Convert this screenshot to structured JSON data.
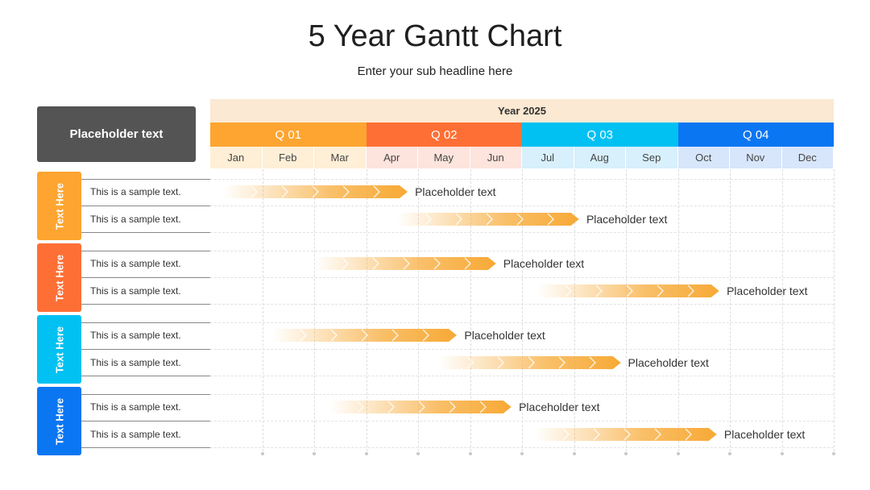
{
  "title": "5 Year Gantt Chart",
  "subtitle": "Enter your sub headline here",
  "placeholder_box": "Placeholder text",
  "year_label": "Year 2025",
  "colors": {
    "q1": "#fda530",
    "q2": "#fe6f35",
    "q3": "#00c1f2",
    "q4": "#0b76f2",
    "m1": "#feefd6",
    "m2": "#fde4dd",
    "m3": "#d7f0fb",
    "m4": "#d8e6fb",
    "bar": "#f7a935",
    "bar_chevron": "#ffffff",
    "group1": "#fda530",
    "group2": "#fe6f35",
    "group3": "#00c1f2",
    "group4": "#0b76f2"
  },
  "chart_data": {
    "type": "gantt",
    "title": "5 Year Gantt Chart",
    "quarters": [
      "Q 01",
      "Q 02",
      "Q 03",
      "Q 04"
    ],
    "months": [
      "Jan",
      "Feb",
      "Mar",
      "Apr",
      "May",
      "Jun",
      "Jul",
      "Aug",
      "Sep",
      "Oct",
      "Nov",
      "Dec"
    ],
    "groups": [
      {
        "label": "Text Here",
        "rows": [
          {
            "text": "This is a sample text.",
            "start": 0.25,
            "end": 3.8,
            "label": "Placeholder text"
          },
          {
            "text": "This is a sample text.",
            "start": 3.6,
            "end": 7.1,
            "label": "Placeholder text"
          }
        ]
      },
      {
        "label": "Text Here",
        "rows": [
          {
            "text": "This is a sample text.",
            "start": 2.0,
            "end": 5.5,
            "label": "Placeholder text"
          },
          {
            "text": "This is a sample text.",
            "start": 6.3,
            "end": 9.8,
            "label": "Placeholder text"
          }
        ]
      },
      {
        "label": "Text Here",
        "rows": [
          {
            "text": "This is a sample text.",
            "start": 1.2,
            "end": 4.75,
            "label": "Placeholder text"
          },
          {
            "text": "This is a sample text.",
            "start": 4.4,
            "end": 7.9,
            "label": "Placeholder text"
          }
        ]
      },
      {
        "label": "Text Here",
        "rows": [
          {
            "text": "This is a sample text.",
            "start": 2.3,
            "end": 5.8,
            "label": "Placeholder text"
          },
          {
            "text": "This is a sample text.",
            "start": 6.25,
            "end": 9.75,
            "label": "Placeholder text"
          }
        ]
      }
    ]
  }
}
